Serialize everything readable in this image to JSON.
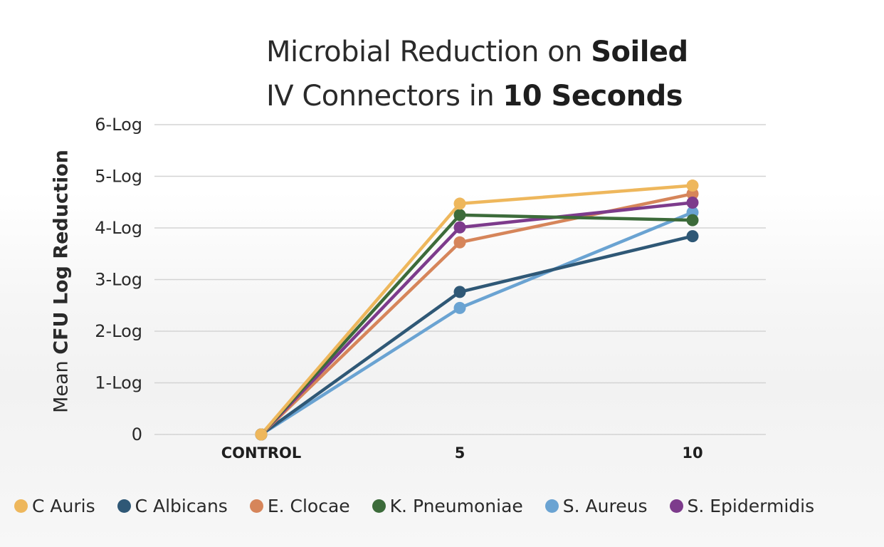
{
  "chart_data": {
    "type": "line",
    "title_part1": "Microbial Reduction on ",
    "title_part1_bold": "Soiled",
    "title_part2": "IV Connectors in ",
    "title_part2_bold": "10 Seconds",
    "ylabel_prefix": "Mean ",
    "ylabel_bold": "CFU Log Reduction",
    "xlabel": "",
    "categories": [
      "CONTROL",
      "5",
      "10"
    ],
    "yticks": [
      "0",
      "1-Log",
      "2-Log",
      "3-Log",
      "4-Log",
      "5-Log",
      "6-Log"
    ],
    "ylim": [
      0,
      6
    ],
    "grid": true,
    "legend_position": "bottom",
    "series": [
      {
        "name": "C Auris",
        "color": "#eeb75c",
        "values": [
          0,
          4.47,
          4.82
        ]
      },
      {
        "name": "C Albicans",
        "color": "#2f5876",
        "values": [
          0,
          2.76,
          3.84
        ]
      },
      {
        "name": "E. Clocae",
        "color": "#d6855a",
        "values": [
          0,
          3.72,
          4.66
        ]
      },
      {
        "name": "K. Pneumoniae",
        "color": "#3c6b3a",
        "values": [
          0,
          4.25,
          4.15
        ]
      },
      {
        "name": "S. Aureus",
        "color": "#6aa3d2",
        "values": [
          0,
          2.45,
          4.3
        ]
      },
      {
        "name": "S. Epidermidis",
        "color": "#7d3b8c",
        "values": [
          0,
          4.01,
          4.49
        ]
      }
    ]
  }
}
